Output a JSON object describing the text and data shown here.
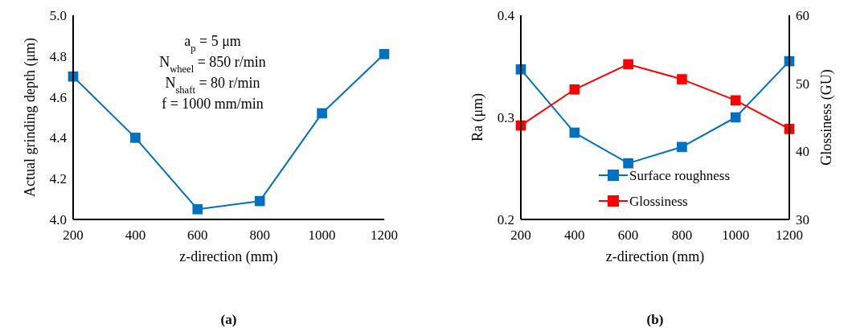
{
  "chart_data": [
    {
      "type": "line",
      "xlabel": "z-direction (mm)",
      "ylabel": "Actual grinding depth (μm)",
      "x": [
        200,
        400,
        600,
        800,
        1000,
        1200
      ],
      "xlim": [
        200,
        1200
      ],
      "xticks": [
        200,
        400,
        600,
        800,
        1000,
        1200
      ],
      "ylim": [
        4.0,
        5.0
      ],
      "yticks": [
        {
          "value": 4.0,
          "label": "4.0"
        },
        4.2,
        4.4,
        4.6,
        4.8,
        {
          "value": 5.0,
          "label": "5.0"
        }
      ],
      "marker": "square",
      "grid": false,
      "legend": false,
      "series": [
        {
          "color": "#0070c0",
          "values": [
            4.7,
            4.4,
            4.05,
            4.09,
            4.52,
            4.81
          ]
        }
      ],
      "annotations": [
        "a$_{p}$ = 5 μm",
        "N$_{wheel}$ = 850 r/min",
        "N$_{shaft}$ = 80 r/min",
        "f = 1000 mm/min",
        "(a)"
      ]
    },
    {
      "type": "line",
      "xlabel": "z-direction (mm)",
      "ylabel": "Ra (μm)",
      "y2label": "Glossiness (GU)",
      "x": [
        200,
        400,
        600,
        800,
        1000,
        1200
      ],
      "xlim": [
        200,
        1200
      ],
      "xticks": [
        200,
        400,
        600,
        800,
        1000,
        1200
      ],
      "ylim": [
        0.2,
        0.4
      ],
      "yticks": [
        0.2,
        0.3,
        0.4
      ],
      "y2lim": [
        30,
        60
      ],
      "y2ticks": [
        30,
        40,
        50,
        60
      ],
      "marker": "square",
      "grid": false,
      "legend": "bottom",
      "series": [
        {
          "name": "Surface roughness",
          "color": "#0070c0",
          "values": [
            0.347,
            0.285,
            0.255,
            0.271,
            0.3,
            0.355
          ]
        },
        {
          "name": "Glossiness",
          "color": "#ff0000",
          "axis": "y2",
          "values": [
            43.8,
            49.1,
            52.8,
            50.6,
            47.5,
            43.3
          ]
        }
      ],
      "annotations": [
        "(b)"
      ]
    }
  ]
}
